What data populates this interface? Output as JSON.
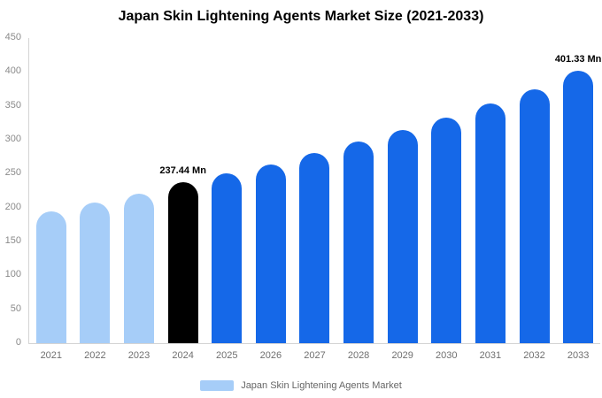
{
  "chart_data": {
    "type": "bar",
    "title": "Japan Skin Lightening Agents Market Size (2021-2033)",
    "categories": [
      "2021",
      "2022",
      "2023",
      "2024",
      "2025",
      "2026",
      "2027",
      "2028",
      "2029",
      "2030",
      "2031",
      "2032",
      "2033"
    ],
    "values": [
      195,
      207,
      220,
      237.44,
      250,
      263,
      280,
      297,
      315,
      333,
      353,
      375,
      401.33
    ],
    "xlabel": "",
    "ylabel": "",
    "ylim": [
      0,
      450
    ],
    "yticks": [
      0,
      50,
      100,
      150,
      200,
      250,
      300,
      350,
      400,
      450
    ],
    "grid": false,
    "annotations": [
      {
        "index": 3,
        "text": "237.44 Mn"
      },
      {
        "index": 12,
        "text": "401.33 Mn"
      }
    ],
    "colors": {
      "historical": "#a6cdf8",
      "current": "#000000",
      "forecast": "#1568e8"
    },
    "bar_color_keys": [
      "historical",
      "historical",
      "historical",
      "current",
      "forecast",
      "forecast",
      "forecast",
      "forecast",
      "forecast",
      "forecast",
      "forecast",
      "forecast",
      "forecast"
    ],
    "legend": {
      "label": "Japan Skin Lightening Agents Market",
      "position": "bottom",
      "swatch_color": "#a6cdf8"
    }
  }
}
